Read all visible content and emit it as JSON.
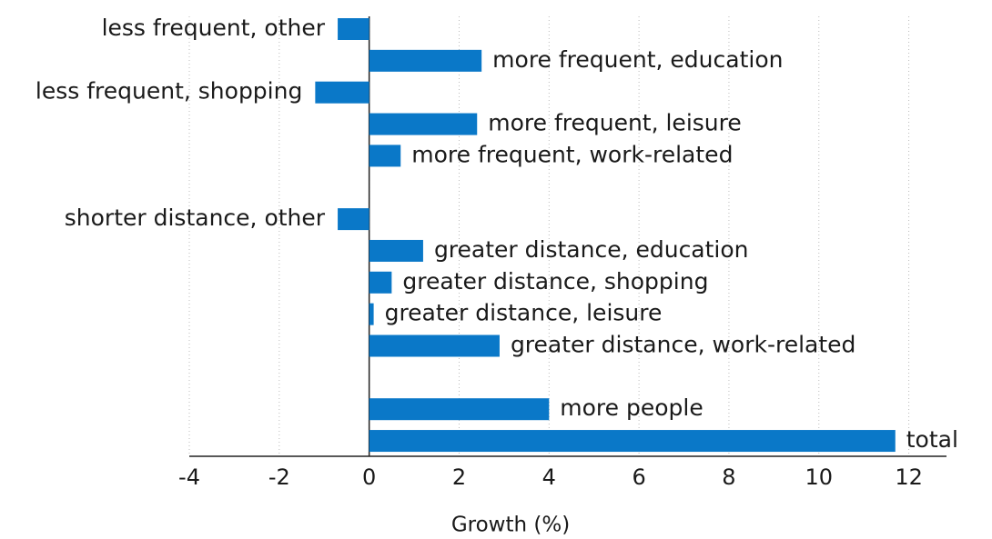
{
  "chart_data": {
    "type": "barh",
    "categories": [
      "less frequent, other",
      "more frequent, education",
      "less frequent, shopping",
      "more frequent, leisure",
      "more frequent, work-related",
      null,
      "shorter distance, other",
      "greater distance, education",
      "greater distance, shopping",
      "greater distance, leisure",
      "greater distance, work-related",
      null,
      "more people",
      "total"
    ],
    "values": [
      -0.7,
      2.5,
      -1.2,
      2.4,
      0.7,
      null,
      -0.7,
      1.2,
      0.5,
      0.1,
      2.9,
      null,
      4.0,
      11.7
    ],
    "color": "#0a78c8",
    "x_label": "Growth (%)",
    "xlim": [
      -4,
      13
    ],
    "xticks": [
      -4,
      -2,
      0,
      2,
      4,
      6,
      8,
      10,
      12
    ],
    "grid": true
  }
}
